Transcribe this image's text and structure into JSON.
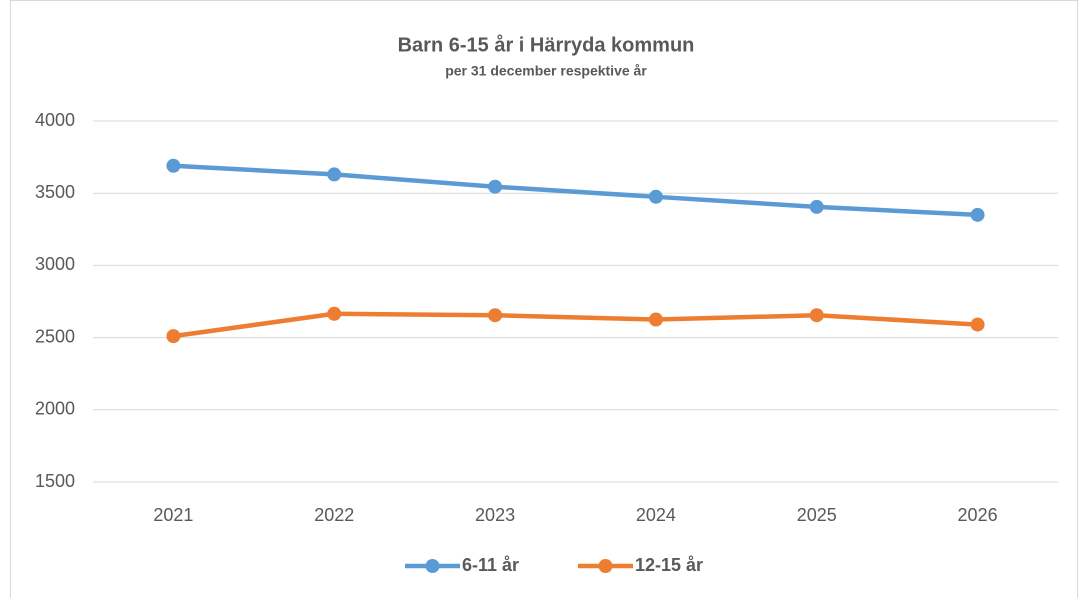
{
  "chart_data": {
    "type": "line",
    "title": "Barn 6-15 år i Härryda kommun",
    "subtitle": "per 31 december respektive år",
    "categories": [
      "2021",
      "2022",
      "2023",
      "2024",
      "2025",
      "2026"
    ],
    "series": [
      {
        "name": "6-11 år",
        "color": "#5b9bd5",
        "values": [
          3690,
          3630,
          3545,
          3475,
          3405,
          3350
        ]
      },
      {
        "name": "12-15 år",
        "color": "#ed7d31",
        "values": [
          2510,
          2665,
          2655,
          2625,
          2655,
          2590
        ]
      }
    ],
    "ylim": [
      1500,
      4000
    ],
    "yticks": [
      1500,
      2000,
      2500,
      3000,
      3500,
      4000
    ],
    "grid": true,
    "legend": "bottom"
  }
}
